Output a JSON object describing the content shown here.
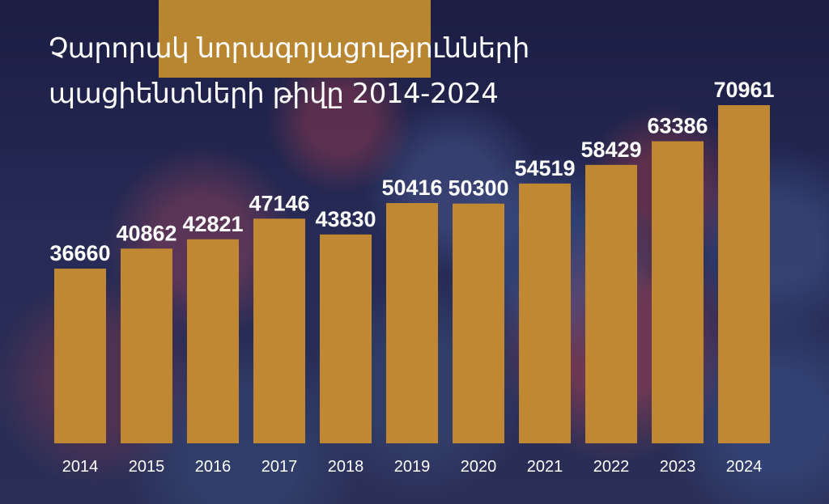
{
  "title": {
    "line1": "Չարորակ նորագոյացությունների",
    "line2": "պացիենտների թիվը 2014-2024"
  },
  "colors": {
    "bar": "#c08833",
    "title_highlight": "#b88530",
    "background": "#1c1f45",
    "text": "#ffffff"
  },
  "chart_data": {
    "type": "bar",
    "title": "Չարորակ նորագոյացությունների պացիենտների թիվը 2014-2024",
    "categories": [
      "2014",
      "2015",
      "2016",
      "2017",
      "2018",
      "2019",
      "2020",
      "2021",
      "2022",
      "2023",
      "2024"
    ],
    "values": [
      36660,
      40862,
      42821,
      47146,
      43830,
      50416,
      50300,
      54519,
      58429,
      63386,
      70961
    ],
    "data_labels": [
      "36660",
      "40862",
      "42821",
      "47146",
      "43830",
      "50416",
      "50300",
      "54519",
      "58429",
      "63386",
      "70961"
    ],
    "xlabel": "",
    "ylabel": "",
    "grid": false,
    "legend": "none"
  }
}
